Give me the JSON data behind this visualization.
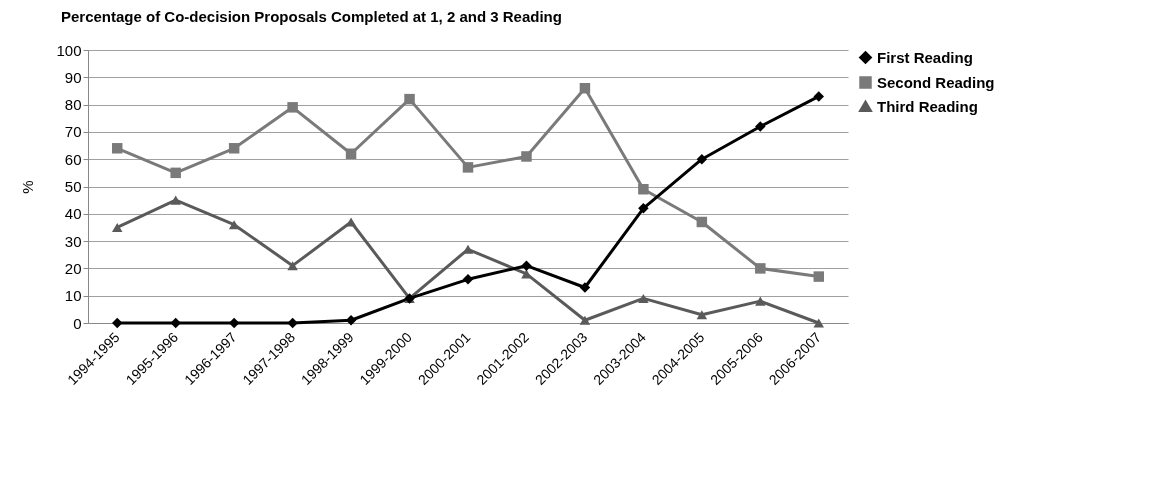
{
  "chart_data": {
    "type": "line",
    "title": "Percentage of Co-decision Proposals Completed at 1, 2 and 3 Reading",
    "ylabel": "%",
    "categories": [
      "1994-1995",
      "1995-1996",
      "1996-1997",
      "1997-1998",
      "1998-1999",
      "1999-2000",
      "2000-2001",
      "2001-2002",
      "2002-2003",
      "2003-2004",
      "2004-2005",
      "2005-2006",
      "2006-2007"
    ],
    "series": [
      {
        "name": "First Reading",
        "color": "#000000",
        "marker": "diamond",
        "values": [
          0,
          0,
          0,
          0,
          1,
          9,
          16,
          21,
          13,
          42,
          60,
          72,
          83
        ]
      },
      {
        "name": "Second Reading",
        "color": "#7a7a7a",
        "marker": "square",
        "values": [
          64,
          55,
          64,
          79,
          62,
          82,
          57,
          61,
          86,
          49,
          37,
          20,
          17
        ]
      },
      {
        "name": "Third Reading",
        "color": "#5a5a5a",
        "marker": "triangle",
        "values": [
          35,
          45,
          36,
          21,
          37,
          9,
          27,
          18,
          1,
          9,
          3,
          8,
          0
        ]
      }
    ],
    "ylim": [
      0,
      100
    ],
    "yticks": [
      0,
      10,
      20,
      30,
      40,
      50,
      60,
      70,
      80,
      90,
      100
    ],
    "grid": "y",
    "legend": "right"
  }
}
